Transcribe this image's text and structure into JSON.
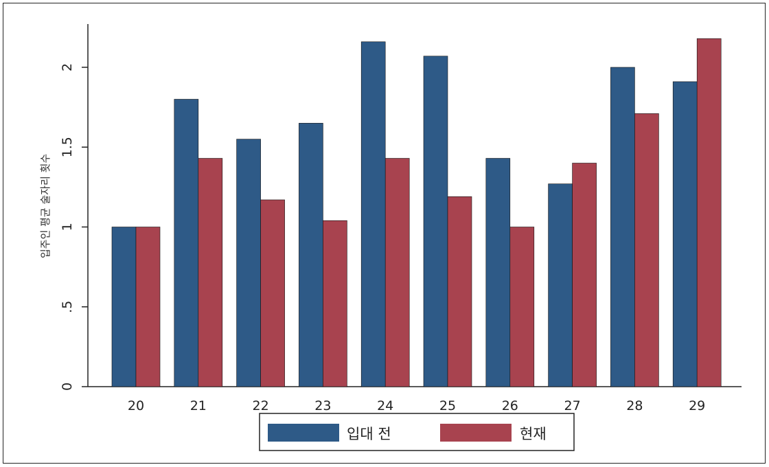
{
  "chart_data": {
    "type": "bar",
    "title": "",
    "xlabel": "",
    "ylabel": "입주인 평균 술자리 횟수",
    "categories": [
      "20",
      "21",
      "22",
      "23",
      "24",
      "25",
      "26",
      "27",
      "28",
      "29"
    ],
    "series": [
      {
        "name": "입대 전",
        "color": "#2e5a87",
        "values": [
          1.0,
          1.8,
          1.55,
          1.65,
          2.16,
          2.07,
          1.43,
          1.27,
          2.0,
          1.91
        ]
      },
      {
        "name": "현재",
        "color": "#a8434f",
        "values": [
          1.0,
          1.43,
          1.17,
          1.04,
          1.43,
          1.19,
          1.0,
          1.4,
          1.71,
          2.18
        ]
      }
    ],
    "ylim": [
      0,
      2.3
    ],
    "yticks": [
      {
        "value": 0,
        "label": "0"
      },
      {
        "value": 0.5,
        "label": ".5"
      },
      {
        "value": 1,
        "label": "1"
      },
      {
        "value": 1.5,
        "label": "1.5"
      },
      {
        "value": 2,
        "label": "2"
      }
    ],
    "grid": false,
    "legend_position": "bottom"
  }
}
